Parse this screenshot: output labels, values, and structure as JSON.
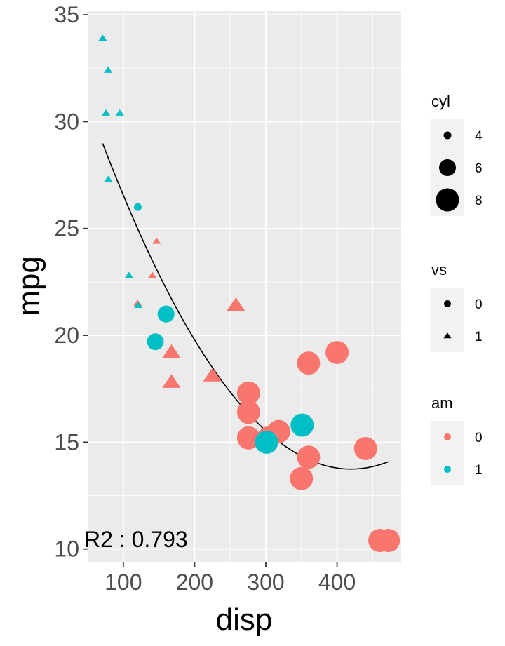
{
  "chart_data": {
    "type": "scatter",
    "title": "",
    "xlabel": "disp",
    "ylabel": "mpg",
    "xlim": [
      50,
      490
    ],
    "ylim": [
      9.4,
      35.2
    ],
    "x_ticks": [
      100,
      200,
      300,
      400
    ],
    "y_ticks": [
      10,
      15,
      20,
      25,
      30,
      35
    ],
    "grid": true,
    "legend_position": "right",
    "annotation": "R2 : 0.793",
    "colors": {
      "am0": "#F8766D",
      "am1": "#00BFC4",
      "panel": "#EBEBEB",
      "grid": "#FFFFFF"
    },
    "legends": [
      {
        "title": "cyl",
        "type": "size",
        "entries": [
          {
            "label": "4",
            "value": 4
          },
          {
            "label": "6",
            "value": 6
          },
          {
            "label": "8",
            "value": 8
          }
        ]
      },
      {
        "title": "vs",
        "type": "shape",
        "entries": [
          {
            "label": "0",
            "value": 0
          },
          {
            "label": "1",
            "value": 1
          }
        ]
      },
      {
        "title": "am",
        "type": "color",
        "entries": [
          {
            "label": "0",
            "value": 0
          },
          {
            "label": "1",
            "value": 1
          }
        ]
      }
    ],
    "points": [
      {
        "disp": 160,
        "mpg": 21.0,
        "cyl": 6,
        "vs": 0,
        "am": 1
      },
      {
        "disp": 160,
        "mpg": 21.0,
        "cyl": 6,
        "vs": 0,
        "am": 1
      },
      {
        "disp": 108,
        "mpg": 22.8,
        "cyl": 4,
        "vs": 1,
        "am": 1
      },
      {
        "disp": 258,
        "mpg": 21.4,
        "cyl": 6,
        "vs": 1,
        "am": 0
      },
      {
        "disp": 360,
        "mpg": 18.7,
        "cyl": 8,
        "vs": 0,
        "am": 0
      },
      {
        "disp": 225,
        "mpg": 18.1,
        "cyl": 6,
        "vs": 1,
        "am": 0
      },
      {
        "disp": 360,
        "mpg": 14.3,
        "cyl": 8,
        "vs": 0,
        "am": 0
      },
      {
        "disp": 146.7,
        "mpg": 24.4,
        "cyl": 4,
        "vs": 1,
        "am": 0
      },
      {
        "disp": 140.8,
        "mpg": 22.8,
        "cyl": 4,
        "vs": 1,
        "am": 0
      },
      {
        "disp": 167.6,
        "mpg": 19.2,
        "cyl": 6,
        "vs": 1,
        "am": 0
      },
      {
        "disp": 167.6,
        "mpg": 17.8,
        "cyl": 6,
        "vs": 1,
        "am": 0
      },
      {
        "disp": 275.8,
        "mpg": 16.4,
        "cyl": 8,
        "vs": 0,
        "am": 0
      },
      {
        "disp": 275.8,
        "mpg": 17.3,
        "cyl": 8,
        "vs": 0,
        "am": 0
      },
      {
        "disp": 275.8,
        "mpg": 15.2,
        "cyl": 8,
        "vs": 0,
        "am": 0
      },
      {
        "disp": 472,
        "mpg": 10.4,
        "cyl": 8,
        "vs": 0,
        "am": 0
      },
      {
        "disp": 460,
        "mpg": 10.4,
        "cyl": 8,
        "vs": 0,
        "am": 0
      },
      {
        "disp": 440,
        "mpg": 14.7,
        "cyl": 8,
        "vs": 0,
        "am": 0
      },
      {
        "disp": 78.7,
        "mpg": 32.4,
        "cyl": 4,
        "vs": 1,
        "am": 1
      },
      {
        "disp": 75.7,
        "mpg": 30.4,
        "cyl": 4,
        "vs": 1,
        "am": 1
      },
      {
        "disp": 71.1,
        "mpg": 33.9,
        "cyl": 4,
        "vs": 1,
        "am": 1
      },
      {
        "disp": 120.1,
        "mpg": 21.5,
        "cyl": 4,
        "vs": 1,
        "am": 0
      },
      {
        "disp": 318,
        "mpg": 15.5,
        "cyl": 8,
        "vs": 0,
        "am": 0
      },
      {
        "disp": 304,
        "mpg": 15.2,
        "cyl": 8,
        "vs": 0,
        "am": 0
      },
      {
        "disp": 350,
        "mpg": 13.3,
        "cyl": 8,
        "vs": 0,
        "am": 0
      },
      {
        "disp": 400,
        "mpg": 19.2,
        "cyl": 8,
        "vs": 0,
        "am": 0
      },
      {
        "disp": 79,
        "mpg": 27.3,
        "cyl": 4,
        "vs": 1,
        "am": 1
      },
      {
        "disp": 120.3,
        "mpg": 26.0,
        "cyl": 4,
        "vs": 0,
        "am": 1
      },
      {
        "disp": 95.1,
        "mpg": 30.4,
        "cyl": 4,
        "vs": 1,
        "am": 1
      },
      {
        "disp": 351,
        "mpg": 15.8,
        "cyl": 8,
        "vs": 0,
        "am": 1
      },
      {
        "disp": 145,
        "mpg": 19.7,
        "cyl": 6,
        "vs": 0,
        "am": 1
      },
      {
        "disp": 301,
        "mpg": 15.0,
        "cyl": 8,
        "vs": 0,
        "am": 1
      },
      {
        "disp": 121,
        "mpg": 21.4,
        "cyl": 4,
        "vs": 1,
        "am": 1
      }
    ],
    "fit": {
      "type": "quadratic",
      "coefficients": [
        35.83,
        -0.1053,
        0.0001255
      ],
      "x_range": [
        71.1,
        472
      ]
    }
  }
}
